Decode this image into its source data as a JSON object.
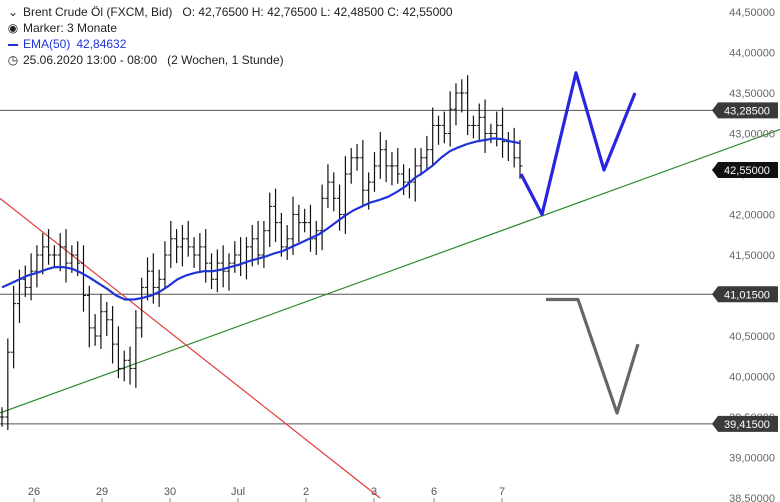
{
  "header": {
    "instrument": "Brent Crude Öl (FXCM, Bid)",
    "ohlc": "O: 42,76500  H: 42,76500  L: 42,48500  C: 42,55000",
    "marker": "Marker: 3 Monate",
    "ema_label": "EMA(50)",
    "ema_value": "42,84632",
    "range": "25.06.2020 13:00 - 08:00",
    "range_note": "(2 Wochen, 1 Stunde)"
  },
  "colors": {
    "ema": "#1f33d6",
    "trend_up": "#2e8b2e",
    "trend_down": "#e23b3b",
    "scenario_bull": "#2626e0",
    "scenario_bear": "#666666",
    "level_line": "#555555",
    "tag_bg": "#3a3a3a",
    "price_tag_bg": "#111111"
  },
  "chart_data": {
    "type": "line",
    "ylim": [
      38.5,
      44.5
    ],
    "y_ticks": [
      "44,50000",
      "44,00000",
      "43,50000",
      "43,00000",
      "42,50000",
      "42,00000",
      "41,50000",
      "41,00000",
      "40,50000",
      "40,00000",
      "39,50000",
      "39,00000",
      "38,50000"
    ],
    "y_tick_values": [
      44.5,
      44.0,
      43.5,
      43.0,
      42.5,
      42.0,
      41.5,
      41.0,
      40.5,
      40.0,
      39.5,
      39.0,
      38.5
    ],
    "x_ticks": [
      "26",
      "29",
      "30",
      "Jul",
      "2",
      "3",
      "6",
      "7"
    ],
    "levels": [
      {
        "label": "43,28500",
        "value": 43.285
      },
      {
        "label": "41,01500",
        "value": 41.015
      },
      {
        "label": "39,41500",
        "value": 39.415
      }
    ],
    "current_price": {
      "label": "42,55000",
      "value": 42.55
    },
    "price_series": [
      39.5,
      40.3,
      40.9,
      41.2,
      41.1,
      41.3,
      41.5,
      41.6,
      41.5,
      41.5,
      41.6,
      41.4,
      41.5,
      41.4,
      41.0,
      40.6,
      40.5,
      40.8,
      40.7,
      40.4,
      40.1,
      40.2,
      40.1,
      40.6,
      41.1,
      41.3,
      41.1,
      41.2,
      41.5,
      41.7,
      41.6,
      41.7,
      41.6,
      41.5,
      41.6,
      41.4,
      41.2,
      41.4,
      41.3,
      41.4,
      41.5,
      41.4,
      41.6,
      41.7,
      41.5,
      41.8,
      42.1,
      41.9,
      41.6,
      41.7,
      42.0,
      41.9,
      41.9,
      41.7,
      41.8,
      42.2,
      42.4,
      42.2,
      42.0,
      42.5,
      42.7,
      42.7,
      42.3,
      42.4,
      42.6,
      42.8,
      42.6,
      42.6,
      42.5,
      42.4,
      42.4,
      42.6,
      42.7,
      42.8,
      43.1,
      43.1,
      43.0,
      43.3,
      43.5,
      43.5,
      43.1,
      43.1,
      43.2,
      43.0,
      43.0,
      43.1,
      42.9,
      42.9,
      42.7,
      42.6
    ],
    "ema_series": [
      41.1,
      41.15,
      41.2,
      41.25,
      41.28,
      41.32,
      41.35,
      41.35,
      41.33,
      41.28,
      41.22,
      41.15,
      41.08,
      41.0,
      40.95,
      40.95,
      40.97,
      41.0,
      41.05,
      41.12,
      41.2,
      41.25,
      41.28,
      41.3,
      41.3,
      41.32,
      41.35,
      41.38,
      41.42,
      41.45,
      41.48,
      41.52,
      41.55,
      41.6,
      41.65,
      41.7,
      41.75,
      41.82,
      41.9,
      41.98,
      42.05,
      42.1,
      42.15,
      42.18,
      42.22,
      42.28,
      42.35,
      42.45,
      42.52,
      42.6,
      42.7,
      42.78,
      42.83,
      42.87,
      42.9,
      42.92,
      42.94,
      42.93,
      42.9,
      42.88
    ],
    "trendline_up": {
      "from": [
        0,
        39.55
      ],
      "to": [
        780,
        43.05
      ]
    },
    "trendline_down": {
      "from": [
        0,
        42.2
      ],
      "to": [
        380,
        38.5
      ]
    },
    "scenario_bull": [
      42.5,
      42.0,
      43.75,
      42.55,
      43.5
    ],
    "scenario_bear": [
      40.95,
      40.95,
      39.55,
      40.4
    ]
  }
}
